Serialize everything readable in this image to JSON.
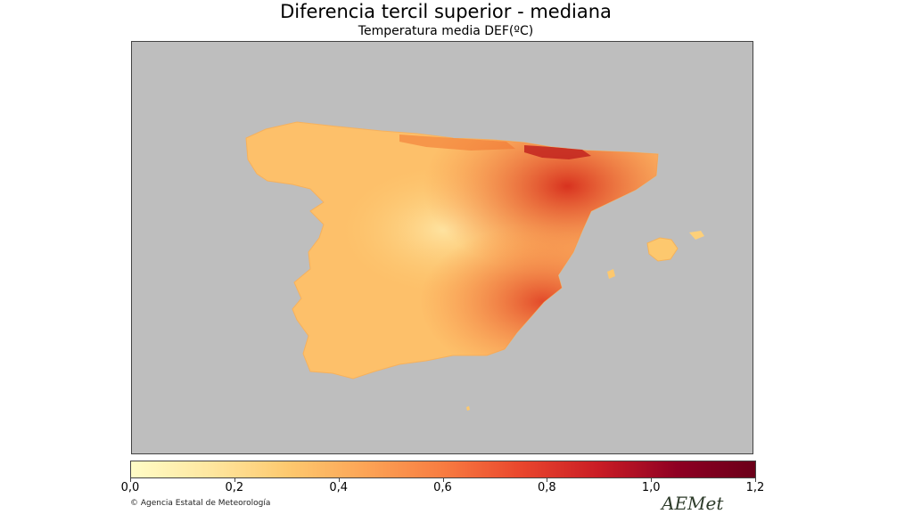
{
  "title": "Diferencia tercil superior - mediana",
  "subtitle": "Temperatura media DEF(ºC)",
  "map": {
    "region": "Spain",
    "background_color": "#bebebe",
    "land_color_scale": [
      "#fffcc6",
      "#fee7a0",
      "#fdc96f",
      "#fca456",
      "#f87c41",
      "#e9462d",
      "#c91c25",
      "#8e0023",
      "#6b0019"
    ]
  },
  "colorbar": {
    "min": 0.0,
    "max": 1.2,
    "ticks": [
      "0,0",
      "0,2",
      "0,4",
      "0,6",
      "0,8",
      "1,0",
      "1,2"
    ],
    "colors": [
      "#fffcc6",
      "#fee7a0",
      "#fdc96f",
      "#fca456",
      "#f87c41",
      "#e9462d",
      "#c91c25",
      "#8e0023",
      "#6b0019"
    ]
  },
  "footer": {
    "credit": "© Agencia Estatal de Meteorología",
    "logo": "AEMet"
  }
}
